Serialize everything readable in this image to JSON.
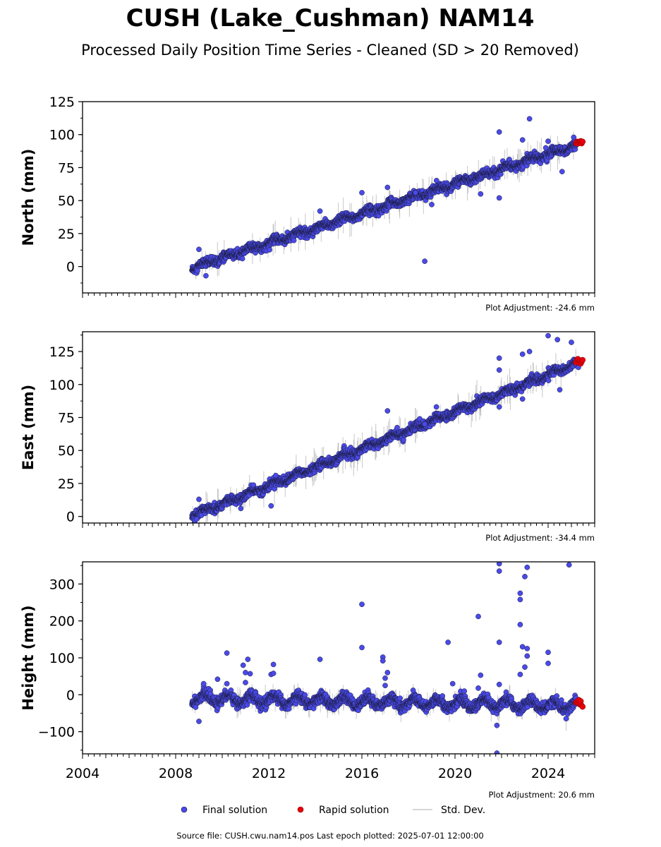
{
  "title": "CUSH (Lake_Cushman) NAM14",
  "subtitle": "Processed Daily Position Time Series - Cleaned (SD > 20 Removed)",
  "footer": "Source file: CUSH.cwu.nam14.pos  Last epoch plotted: 2025-07-01 12:00:00",
  "legend": {
    "final": "Final solution",
    "rapid": "Rapid solution",
    "std": "Std. Dev."
  },
  "colors": {
    "final": "#4a4ae8",
    "final_edge": "#1a1a3a",
    "rapid": "#e8000b",
    "std": "#b0b0b0"
  },
  "chart_data": [
    {
      "type": "scatter",
      "ylabel": "North (mm)",
      "adjustment": "Plot Adjustment: -24.6 mm",
      "xlim": [
        2004,
        2026
      ],
      "ylim": [
        -20,
        125
      ],
      "yticks": [
        "125",
        "100",
        "75",
        "50",
        "25",
        "0"
      ],
      "ytick_values": [
        125,
        100,
        75,
        50,
        25,
        0
      ],
      "minor_step": 12.5,
      "trend": {
        "start": [
          2008.7,
          -1
        ],
        "end": [
          2025.4,
          93
        ]
      },
      "seasonal_amp": 1.5,
      "series": [
        {
          "name": "Final solution",
          "x_range": [
            2008.7,
            2025.2
          ]
        },
        {
          "name": "Rapid solution",
          "x_range": [
            2025.2,
            2025.5
          ]
        }
      ],
      "outliers": [
        [
          2009.0,
          13
        ],
        [
          2018.7,
          4
        ],
        [
          2016.0,
          56
        ],
        [
          2017.1,
          60
        ],
        [
          2021.9,
          102
        ],
        [
          2021.9,
          52
        ],
        [
          2022.9,
          96
        ],
        [
          2023.2,
          112
        ],
        [
          2024.6,
          72
        ],
        [
          2014.2,
          42
        ],
        [
          2009.3,
          -7
        ],
        [
          2023.9,
          90
        ],
        [
          2024.0,
          95
        ],
        [
          2025.1,
          98
        ],
        [
          2018.3,
          56
        ],
        [
          2019.0,
          47
        ],
        [
          2021.1,
          55
        ]
      ]
    },
    {
      "type": "scatter",
      "ylabel": "East (mm)",
      "adjustment": "Plot Adjustment: -34.4 mm",
      "xlim": [
        2004,
        2026
      ],
      "ylim": [
        -5,
        140
      ],
      "yticks": [
        "125",
        "100",
        "75",
        "50",
        "25",
        "0"
      ],
      "ytick_values": [
        125,
        100,
        75,
        50,
        25,
        0
      ],
      "minor_step": 12.5,
      "trend": {
        "start": [
          2008.7,
          0
        ],
        "end": [
          2025.4,
          117
        ]
      },
      "seasonal_amp": 1.5,
      "series": [
        {
          "name": "Final solution",
          "x_range": [
            2008.7,
            2025.2
          ]
        },
        {
          "name": "Rapid solution",
          "x_range": [
            2025.2,
            2025.5
          ]
        }
      ],
      "outliers": [
        [
          2008.9,
          -2
        ],
        [
          2009.0,
          13
        ],
        [
          2012.1,
          8
        ],
        [
          2017.1,
          80
        ],
        [
          2018.7,
          70
        ],
        [
          2019.2,
          83
        ],
        [
          2021.9,
          120
        ],
        [
          2021.9,
          111
        ],
        [
          2021.9,
          83
        ],
        [
          2022.9,
          123
        ],
        [
          2022.9,
          89
        ],
        [
          2023.2,
          125
        ],
        [
          2024.0,
          137
        ],
        [
          2024.4,
          134
        ],
        [
          2024.5,
          96
        ],
        [
          2025.0,
          132
        ],
        [
          2025.3,
          113
        ],
        [
          2010.8,
          6
        ],
        [
          2012.3,
          31
        ]
      ]
    },
    {
      "type": "scatter",
      "ylabel": "Height (mm)",
      "adjustment": "Plot Adjustment: 20.6 mm",
      "xlim": [
        2004,
        2026
      ],
      "ylim": [
        -160,
        360
      ],
      "yticks": [
        "300",
        "200",
        "100",
        "0",
        "−100"
      ],
      "ytick_values": [
        300,
        200,
        100,
        0,
        -100
      ],
      "minor_step": 50,
      "xticks": [
        "2004",
        "2008",
        "2012",
        "2016",
        "2020",
        "2024"
      ],
      "xtick_values": [
        2004,
        2008,
        2012,
        2016,
        2020,
        2024
      ],
      "trend": {
        "start": [
          2008.7,
          -10
        ],
        "end": [
          2025.4,
          -30
        ]
      },
      "seasonal_amp": 12,
      "series": [
        {
          "name": "Final solution",
          "x_range": [
            2008.7,
            2025.2
          ]
        },
        {
          "name": "Rapid solution",
          "x_range": [
            2025.2,
            2025.5
          ]
        }
      ],
      "outliers": [
        [
          2009.0,
          -72
        ],
        [
          2009.2,
          30
        ],
        [
          2009.8,
          42
        ],
        [
          2010.2,
          113
        ],
        [
          2010.2,
          30
        ],
        [
          2010.9,
          80
        ],
        [
          2011.1,
          96
        ],
        [
          2011.2,
          57
        ],
        [
          2011.0,
          60
        ],
        [
          2011.0,
          33
        ],
        [
          2012.1,
          55
        ],
        [
          2012.2,
          82
        ],
        [
          2012.2,
          58
        ],
        [
          2014.2,
          96
        ],
        [
          2016.0,
          245
        ],
        [
          2016.0,
          128
        ],
        [
          2016.9,
          102
        ],
        [
          2016.9,
          92
        ],
        [
          2017.1,
          60
        ],
        [
          2017.0,
          45
        ],
        [
          2017.0,
          25
        ],
        [
          2018.2,
          12
        ],
        [
          2019.7,
          142
        ],
        [
          2019.9,
          30
        ],
        [
          2020.4,
          10
        ],
        [
          2021.0,
          212
        ],
        [
          2021.1,
          53
        ],
        [
          2021.0,
          18
        ],
        [
          2021.9,
          355
        ],
        [
          2021.9,
          335
        ],
        [
          2021.9,
          142
        ],
        [
          2021.8,
          -83
        ],
        [
          2021.8,
          -158
        ],
        [
          2021.9,
          28
        ],
        [
          2022.8,
          275
        ],
        [
          2022.8,
          258
        ],
        [
          2022.8,
          190
        ],
        [
          2022.9,
          130
        ],
        [
          2023.0,
          320
        ],
        [
          2023.1,
          345
        ],
        [
          2023.1,
          125
        ],
        [
          2023.1,
          105
        ],
        [
          2023.0,
          75
        ],
        [
          2024.0,
          115
        ],
        [
          2024.0,
          85
        ],
        [
          2024.9,
          352
        ],
        [
          2022.8,
          55
        ]
      ]
    }
  ]
}
